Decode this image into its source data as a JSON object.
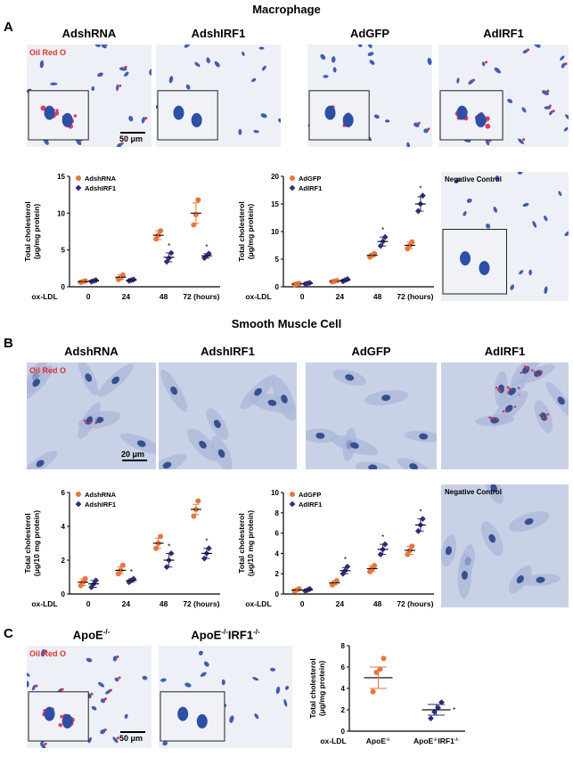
{
  "section_a": {
    "letter": "A",
    "title": "Macrophage",
    "images": [
      "AdshRNA",
      "AdshIRF1",
      "AdGFP",
      "AdIRF1"
    ],
    "oil_label": "Oil Red O",
    "scale_label": "50 μm",
    "negative_control": "Negative Control"
  },
  "section_b": {
    "letter": "B",
    "title": "Smooth Muscle Cell",
    "images": [
      "AdshRNA",
      "AdshIRF1",
      "AdGFP",
      "AdIRF1"
    ],
    "oil_label": "Oil Red O",
    "scale_label": "20 μm",
    "negative_control": "Negative Control"
  },
  "section_c": {
    "letter": "C",
    "images": [
      "ApoE",
      "ApoE",
      "IRF1"
    ],
    "images_sup": [
      "-/-",
      "-/-",
      "-/-"
    ],
    "oil_label": "Oil Red O",
    "scale_label": "50 μm"
  },
  "colors": {
    "orange": "#e8763c",
    "navy": "#2a2d7a",
    "red_stain": "#e0302b"
  },
  "chart_data": [
    {
      "id": "A1",
      "type": "scatter",
      "ylabel": [
        "Total cholesterol",
        "(μg/mg protein)"
      ],
      "xprefix": "ox-LDL",
      "categories": [
        "0",
        "24",
        "48",
        "72 (hours)"
      ],
      "ylim": [
        0,
        15
      ],
      "yticks": [
        0,
        5,
        10,
        15
      ],
      "series": [
        {
          "name": "AdshRNA",
          "color": "#e8763c",
          "marker": "circle",
          "means": [
            0.7,
            1.3,
            7.0,
            10.0
          ],
          "errors": [
            0.15,
            0.3,
            0.6,
            1.4
          ],
          "points": [
            [
              0.6,
              0.7,
              0.8
            ],
            [
              1.0,
              1.2,
              1.6
            ],
            [
              6.5,
              7.0,
              7.6
            ],
            [
              8.4,
              9.8,
              11.8
            ]
          ],
          "sig": [
            false,
            false,
            false,
            false
          ]
        },
        {
          "name": "AdshIRF1",
          "color": "#2a2d7a",
          "marker": "diamond",
          "means": [
            0.8,
            0.9,
            4.0,
            4.2
          ],
          "errors": [
            0.15,
            0.2,
            0.6,
            0.3
          ],
          "points": [
            [
              0.7,
              0.8,
              0.9
            ],
            [
              0.8,
              0.9,
              1.0
            ],
            [
              3.4,
              3.9,
              4.6
            ],
            [
              3.9,
              4.2,
              4.5
            ]
          ],
          "sig": [
            false,
            false,
            true,
            true
          ]
        }
      ]
    },
    {
      "id": "A2",
      "type": "scatter",
      "ylabel": [
        "Total cholesterol",
        "(μg/mg protein)"
      ],
      "xprefix": "ox-LDL",
      "categories": [
        "0",
        "24",
        "48",
        "72 (hours)"
      ],
      "ylim": [
        0,
        20
      ],
      "yticks": [
        0,
        5,
        10,
        15,
        20
      ],
      "series": [
        {
          "name": "AdGFP",
          "color": "#e8763c",
          "marker": "circle",
          "means": [
            0.5,
            1.0,
            5.7,
            7.5
          ],
          "errors": [
            0.1,
            0.1,
            0.3,
            0.6
          ],
          "points": [
            [
              0.4,
              0.5,
              0.6
            ],
            [
              0.9,
              1.0,
              1.1
            ],
            [
              5.4,
              5.7,
              6.0
            ],
            [
              6.9,
              7.5,
              8.1
            ]
          ],
          "sig": [
            false,
            false,
            false,
            false
          ]
        },
        {
          "name": "AdIRF1",
          "color": "#2a2d7a",
          "marker": "diamond",
          "means": [
            0.6,
            1.2,
            8.2,
            15.0
          ],
          "errors": [
            0.1,
            0.2,
            0.8,
            1.3
          ],
          "points": [
            [
              0.5,
              0.6,
              0.7
            ],
            [
              1.0,
              1.2,
              1.4
            ],
            [
              7.4,
              8.2,
              9.0
            ],
            [
              13.7,
              15.0,
              16.5
            ]
          ],
          "sig": [
            false,
            false,
            true,
            true
          ]
        }
      ]
    },
    {
      "id": "B1",
      "type": "scatter",
      "ylabel": [
        "Total cholesterol",
        "(μg/10 mg protein)"
      ],
      "xprefix": "ox-LDL",
      "categories": [
        "0",
        "24",
        "48",
        "72 (hours)"
      ],
      "ylim": [
        0,
        6
      ],
      "yticks": [
        0,
        2,
        4,
        6
      ],
      "series": [
        {
          "name": "AdshRNA",
          "color": "#e8763c",
          "marker": "circle",
          "means": [
            0.7,
            1.4,
            3.0,
            5.0
          ],
          "errors": [
            0.2,
            0.2,
            0.3,
            0.3
          ],
          "points": [
            [
              0.5,
              0.7,
              0.9
            ],
            [
              1.2,
              1.4,
              1.7
            ],
            [
              2.7,
              3.0,
              3.4
            ],
            [
              4.6,
              5.0,
              5.5
            ]
          ],
          "sig": [
            false,
            false,
            false,
            false
          ]
        },
        {
          "name": "AdshIRF1",
          "color": "#2a2d7a",
          "marker": "diamond",
          "means": [
            0.6,
            0.8,
            2.0,
            2.4
          ],
          "errors": [
            0.2,
            0.1,
            0.4,
            0.3
          ],
          "points": [
            [
              0.4,
              0.6,
              0.8
            ],
            [
              0.7,
              0.8,
              0.9
            ],
            [
              1.6,
              2.0,
              2.4
            ],
            [
              2.1,
              2.4,
              2.7
            ]
          ],
          "sig": [
            false,
            true,
            true,
            true
          ]
        }
      ]
    },
    {
      "id": "B2",
      "type": "scatter",
      "ylabel": [
        "Total cholesterol",
        "(μg/10 mg protein)"
      ],
      "xprefix": "ox-LDL",
      "categories": [
        "0",
        "24",
        "48",
        "72 (hours)"
      ],
      "ylim": [
        0,
        10
      ],
      "yticks": [
        0,
        2,
        4,
        6,
        8,
        10
      ],
      "series": [
        {
          "name": "AdGFP",
          "color": "#e8763c",
          "marker": "circle",
          "means": [
            0.4,
            1.1,
            2.5,
            4.3
          ],
          "errors": [
            0.1,
            0.2,
            0.3,
            0.4
          ],
          "points": [
            [
              0.3,
              0.4,
              0.5
            ],
            [
              0.9,
              1.1,
              1.3
            ],
            [
              2.2,
              2.5,
              2.8
            ],
            [
              3.9,
              4.3,
              4.7
            ]
          ],
          "sig": [
            false,
            false,
            false,
            false
          ]
        },
        {
          "name": "AdIRF1",
          "color": "#2a2d7a",
          "marker": "diamond",
          "means": [
            0.4,
            2.3,
            4.4,
            6.8
          ],
          "errors": [
            0.1,
            0.3,
            0.5,
            0.6
          ],
          "points": [
            [
              0.3,
              0.4,
              0.5
            ],
            [
              2.0,
              2.3,
              2.7
            ],
            [
              3.9,
              4.4,
              4.9
            ],
            [
              6.2,
              6.8,
              7.4
            ]
          ],
          "sig": [
            false,
            true,
            true,
            true
          ]
        }
      ]
    },
    {
      "id": "C1",
      "type": "scatter",
      "ylabel": [
        "Total cholesterol",
        "(μg/mg protein)"
      ],
      "xprefix": "ox-LDL",
      "categories": [
        "ApoE",
        "ApoE IRF1"
      ],
      "ylim": [
        0,
        8
      ],
      "yticks": [
        0,
        2,
        4,
        6,
        8
      ],
      "series": [
        {
          "name": "",
          "color": "#e8763c",
          "marker": "circle",
          "groups": [
            0
          ],
          "means": [
            5.0
          ],
          "errors": [
            1.0
          ],
          "points": [
            [
              3.7,
              5.5,
              5.8,
              6.8
            ]
          ],
          "sig": [
            false
          ]
        },
        {
          "name": "",
          "color": "#2a2d7a",
          "marker": "diamond",
          "groups": [
            1
          ],
          "means": [
            2.0
          ],
          "errors": [
            0.5
          ],
          "points": [
            [
              1.2,
              1.8,
              2.2,
              2.7
            ]
          ],
          "sig": [
            true
          ]
        }
      ]
    }
  ]
}
